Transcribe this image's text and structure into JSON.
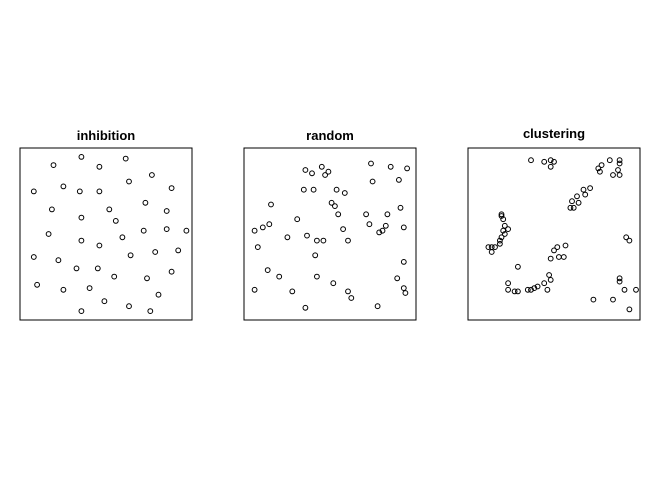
{
  "chart_data": [
    {
      "type": "scatter",
      "title": "inhibition",
      "xlim": [
        0,
        1
      ],
      "ylim": [
        0,
        1
      ],
      "points": [
        [
          0.35,
          0.97
        ],
        [
          0.62,
          0.96
        ],
        [
          0.18,
          0.92
        ],
        [
          0.46,
          0.91
        ],
        [
          0.78,
          0.86
        ],
        [
          0.64,
          0.82
        ],
        [
          0.24,
          0.79
        ],
        [
          0.06,
          0.76
        ],
        [
          0.34,
          0.76
        ],
        [
          0.46,
          0.76
        ],
        [
          0.9,
          0.78
        ],
        [
          0.74,
          0.69
        ],
        [
          0.17,
          0.65
        ],
        [
          0.52,
          0.65
        ],
        [
          0.87,
          0.64
        ],
        [
          0.35,
          0.6
        ],
        [
          0.56,
          0.58
        ],
        [
          0.15,
          0.5
        ],
        [
          0.35,
          0.46
        ],
        [
          0.6,
          0.48
        ],
        [
          0.73,
          0.52
        ],
        [
          0.87,
          0.53
        ],
        [
          0.99,
          0.52
        ],
        [
          0.46,
          0.43
        ],
        [
          0.8,
          0.39
        ],
        [
          0.94,
          0.4
        ],
        [
          0.06,
          0.36
        ],
        [
          0.21,
          0.34
        ],
        [
          0.65,
          0.37
        ],
        [
          0.32,
          0.29
        ],
        [
          0.45,
          0.29
        ],
        [
          0.9,
          0.27
        ],
        [
          0.55,
          0.24
        ],
        [
          0.75,
          0.23
        ],
        [
          0.08,
          0.19
        ],
        [
          0.24,
          0.16
        ],
        [
          0.4,
          0.17
        ],
        [
          0.82,
          0.13
        ],
        [
          0.49,
          0.09
        ],
        [
          0.64,
          0.06
        ],
        [
          0.35,
          0.03
        ],
        [
          0.77,
          0.03
        ]
      ]
    },
    {
      "type": "scatter",
      "title": "random",
      "xlim": [
        0,
        1
      ],
      "ylim": [
        0,
        1
      ],
      "points": [
        [
          0.35,
          0.89
        ],
        [
          0.45,
          0.91
        ],
        [
          0.47,
          0.86
        ],
        [
          0.49,
          0.88
        ],
        [
          0.39,
          0.87
        ],
        [
          0.75,
          0.93
        ],
        [
          0.87,
          0.91
        ],
        [
          0.97,
          0.9
        ],
        [
          0.76,
          0.82
        ],
        [
          0.92,
          0.83
        ],
        [
          0.34,
          0.77
        ],
        [
          0.4,
          0.77
        ],
        [
          0.54,
          0.77
        ],
        [
          0.59,
          0.75
        ],
        [
          0.51,
          0.69
        ],
        [
          0.53,
          0.67
        ],
        [
          0.55,
          0.62
        ],
        [
          0.72,
          0.62
        ],
        [
          0.85,
          0.62
        ],
        [
          0.93,
          0.66
        ],
        [
          0.14,
          0.68
        ],
        [
          0.3,
          0.59
        ],
        [
          0.13,
          0.56
        ],
        [
          0.09,
          0.54
        ],
        [
          0.04,
          0.52
        ],
        [
          0.74,
          0.56
        ],
        [
          0.84,
          0.55
        ],
        [
          0.95,
          0.54
        ],
        [
          0.58,
          0.53
        ],
        [
          0.8,
          0.51
        ],
        [
          0.82,
          0.52
        ],
        [
          0.24,
          0.48
        ],
        [
          0.36,
          0.49
        ],
        [
          0.42,
          0.46
        ],
        [
          0.46,
          0.46
        ],
        [
          0.61,
          0.46
        ],
        [
          0.06,
          0.42
        ],
        [
          0.41,
          0.37
        ],
        [
          0.95,
          0.33
        ],
        [
          0.12,
          0.28
        ],
        [
          0.19,
          0.24
        ],
        [
          0.42,
          0.24
        ],
        [
          0.52,
          0.2
        ],
        [
          0.91,
          0.23
        ],
        [
          0.95,
          0.17
        ],
        [
          0.04,
          0.16
        ],
        [
          0.27,
          0.15
        ],
        [
          0.61,
          0.15
        ],
        [
          0.63,
          0.11
        ],
        [
          0.96,
          0.14
        ],
        [
          0.35,
          0.05
        ],
        [
          0.79,
          0.06
        ]
      ]
    },
    {
      "type": "scatter",
      "title": "clustering",
      "xlim": [
        0,
        1
      ],
      "ylim": [
        0,
        1
      ],
      "points": [
        [
          0.36,
          0.95
        ],
        [
          0.44,
          0.94
        ],
        [
          0.48,
          0.95
        ],
        [
          0.5,
          0.94
        ],
        [
          0.48,
          0.91
        ],
        [
          0.84,
          0.95
        ],
        [
          0.9,
          0.95
        ],
        [
          0.9,
          0.93
        ],
        [
          0.79,
          0.92
        ],
        [
          0.77,
          0.9
        ],
        [
          0.78,
          0.88
        ],
        [
          0.89,
          0.89
        ],
        [
          0.86,
          0.86
        ],
        [
          0.9,
          0.86
        ],
        [
          0.68,
          0.77
        ],
        [
          0.72,
          0.78
        ],
        [
          0.64,
          0.73
        ],
        [
          0.69,
          0.74
        ],
        [
          0.61,
          0.7
        ],
        [
          0.6,
          0.66
        ],
        [
          0.62,
          0.66
        ],
        [
          0.65,
          0.69
        ],
        [
          0.18,
          0.62
        ],
        [
          0.18,
          0.61
        ],
        [
          0.19,
          0.59
        ],
        [
          0.22,
          0.53
        ],
        [
          0.2,
          0.55
        ],
        [
          0.19,
          0.52
        ],
        [
          0.2,
          0.5
        ],
        [
          0.18,
          0.48
        ],
        [
          0.17,
          0.46
        ],
        [
          0.1,
          0.42
        ],
        [
          0.12,
          0.42
        ],
        [
          0.14,
          0.42
        ],
        [
          0.17,
          0.44
        ],
        [
          0.12,
          0.39
        ],
        [
          0.5,
          0.4
        ],
        [
          0.52,
          0.42
        ],
        [
          0.57,
          0.43
        ],
        [
          0.48,
          0.35
        ],
        [
          0.53,
          0.36
        ],
        [
          0.56,
          0.36
        ],
        [
          0.47,
          0.25
        ],
        [
          0.48,
          0.22
        ],
        [
          0.44,
          0.2
        ],
        [
          0.4,
          0.18
        ],
        [
          0.38,
          0.17
        ],
        [
          0.46,
          0.16
        ],
        [
          0.36,
          0.16
        ],
        [
          0.28,
          0.3
        ],
        [
          0.22,
          0.2
        ],
        [
          0.22,
          0.16
        ],
        [
          0.26,
          0.15
        ],
        [
          0.28,
          0.15
        ],
        [
          0.34,
          0.16
        ],
        [
          0.94,
          0.48
        ],
        [
          0.96,
          0.46
        ],
        [
          0.9,
          0.23
        ],
        [
          0.9,
          0.21
        ],
        [
          0.93,
          0.16
        ],
        [
          1.0,
          0.16
        ],
        [
          0.74,
          0.1
        ],
        [
          0.86,
          0.1
        ],
        [
          0.96,
          0.04
        ]
      ]
    }
  ]
}
